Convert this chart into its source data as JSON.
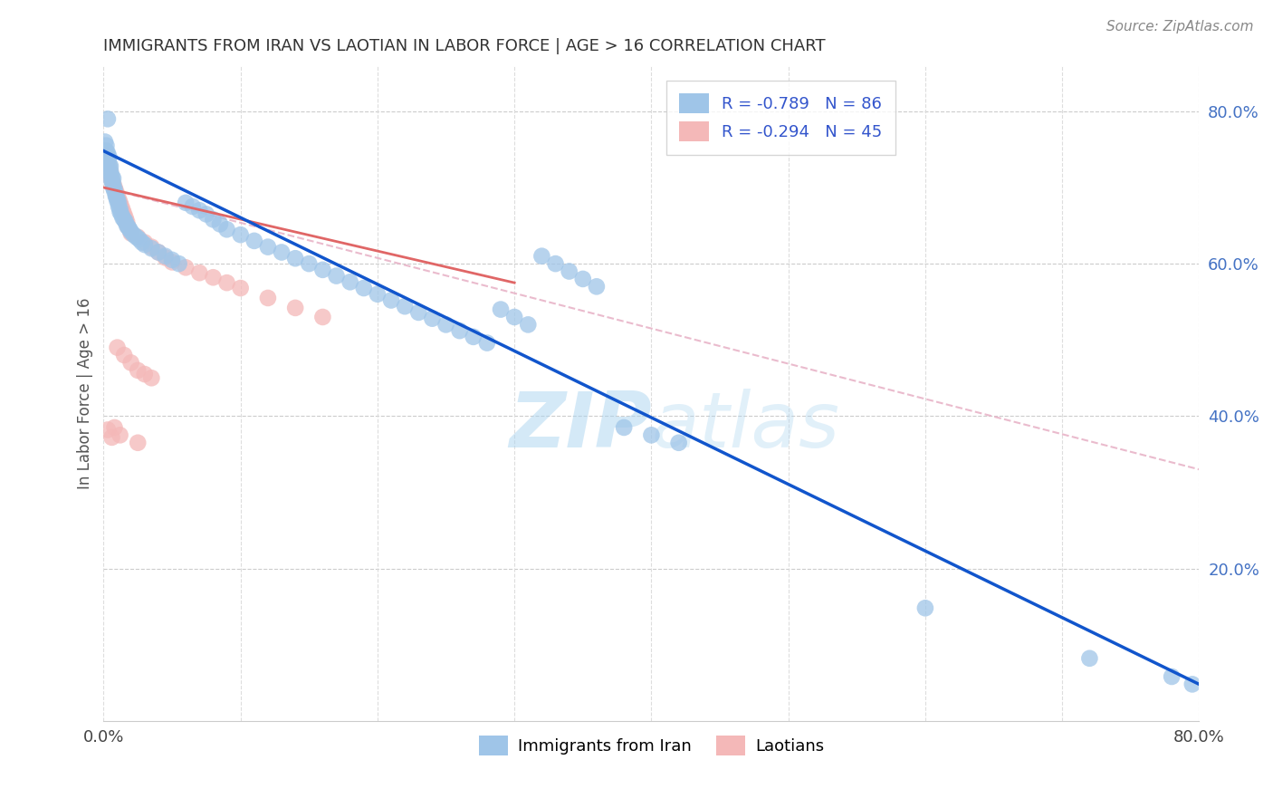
{
  "title": "IMMIGRANTS FROM IRAN VS LAOTIAN IN LABOR FORCE | AGE > 16 CORRELATION CHART",
  "source": "Source: ZipAtlas.com",
  "ylabel": "In Labor Force | Age > 16",
  "xlim": [
    0.0,
    0.8
  ],
  "ylim": [
    0.0,
    0.86
  ],
  "xtick_positions": [
    0.0,
    0.1,
    0.2,
    0.3,
    0.4,
    0.5,
    0.6,
    0.7,
    0.8
  ],
  "xtick_labels": [
    "0.0%",
    "",
    "",
    "",
    "",
    "",
    "",
    "",
    "80.0%"
  ],
  "yticks_right": [
    0.2,
    0.4,
    0.6,
    0.8
  ],
  "ytick_labels_right": [
    "20.0%",
    "40.0%",
    "60.0%",
    "80.0%"
  ],
  "iran_color": "#9fc5e8",
  "laotian_color": "#f4b8b8",
  "iran_R": -0.789,
  "iran_N": 86,
  "laotian_R": -0.294,
  "laotian_N": 45,
  "iran_line_color": "#1155cc",
  "laotian_line_color": "#e06666",
  "ref_line_color": "#e8b4c8",
  "watermark_zip": "ZIP",
  "watermark_atlas": "atlas",
  "legend_iran_label": "Immigrants from Iran",
  "legend_laotian_label": "Laotians",
  "iran_scatter": [
    [
      0.001,
      0.76
    ],
    [
      0.002,
      0.755
    ],
    [
      0.002,
      0.748
    ],
    [
      0.003,
      0.79
    ],
    [
      0.003,
      0.745
    ],
    [
      0.003,
      0.735
    ],
    [
      0.004,
      0.74
    ],
    [
      0.004,
      0.73
    ],
    [
      0.005,
      0.728
    ],
    [
      0.005,
      0.722
    ],
    [
      0.005,
      0.718
    ],
    [
      0.006,
      0.715
    ],
    [
      0.006,
      0.71
    ],
    [
      0.006,
      0.708
    ],
    [
      0.007,
      0.712
    ],
    [
      0.007,
      0.705
    ],
    [
      0.007,
      0.7
    ],
    [
      0.008,
      0.698
    ],
    [
      0.008,
      0.695
    ],
    [
      0.009,
      0.69
    ],
    [
      0.009,
      0.688
    ],
    [
      0.01,
      0.685
    ],
    [
      0.01,
      0.682
    ],
    [
      0.011,
      0.68
    ],
    [
      0.011,
      0.675
    ],
    [
      0.012,
      0.672
    ],
    [
      0.012,
      0.668
    ],
    [
      0.013,
      0.665
    ],
    [
      0.014,
      0.66
    ],
    [
      0.015,
      0.658
    ],
    [
      0.016,
      0.655
    ],
    [
      0.017,
      0.65
    ],
    [
      0.018,
      0.648
    ],
    [
      0.019,
      0.645
    ],
    [
      0.02,
      0.642
    ],
    [
      0.022,
      0.638
    ],
    [
      0.024,
      0.635
    ],
    [
      0.026,
      0.632
    ],
    [
      0.028,
      0.628
    ],
    [
      0.03,
      0.625
    ],
    [
      0.035,
      0.62
    ],
    [
      0.04,
      0.615
    ],
    [
      0.045,
      0.61
    ],
    [
      0.05,
      0.605
    ],
    [
      0.055,
      0.6
    ],
    [
      0.06,
      0.68
    ],
    [
      0.065,
      0.675
    ],
    [
      0.07,
      0.67
    ],
    [
      0.075,
      0.665
    ],
    [
      0.08,
      0.658
    ],
    [
      0.085,
      0.652
    ],
    [
      0.09,
      0.645
    ],
    [
      0.1,
      0.638
    ],
    [
      0.11,
      0.63
    ],
    [
      0.12,
      0.622
    ],
    [
      0.13,
      0.615
    ],
    [
      0.14,
      0.607
    ],
    [
      0.15,
      0.6
    ],
    [
      0.16,
      0.592
    ],
    [
      0.17,
      0.584
    ],
    [
      0.18,
      0.576
    ],
    [
      0.19,
      0.568
    ],
    [
      0.2,
      0.56
    ],
    [
      0.21,
      0.552
    ],
    [
      0.22,
      0.544
    ],
    [
      0.23,
      0.536
    ],
    [
      0.24,
      0.528
    ],
    [
      0.25,
      0.52
    ],
    [
      0.26,
      0.512
    ],
    [
      0.27,
      0.504
    ],
    [
      0.28,
      0.496
    ],
    [
      0.29,
      0.54
    ],
    [
      0.3,
      0.53
    ],
    [
      0.31,
      0.52
    ],
    [
      0.32,
      0.61
    ],
    [
      0.33,
      0.6
    ],
    [
      0.34,
      0.59
    ],
    [
      0.35,
      0.58
    ],
    [
      0.36,
      0.57
    ],
    [
      0.38,
      0.385
    ],
    [
      0.4,
      0.375
    ],
    [
      0.42,
      0.365
    ],
    [
      0.6,
      0.148
    ],
    [
      0.72,
      0.082
    ],
    [
      0.78,
      0.058
    ],
    [
      0.795,
      0.048
    ]
  ],
  "laotian_scatter": [
    [
      0.001,
      0.748
    ],
    [
      0.002,
      0.742
    ],
    [
      0.003,
      0.736
    ],
    [
      0.004,
      0.728
    ],
    [
      0.005,
      0.72
    ],
    [
      0.005,
      0.715
    ],
    [
      0.006,
      0.71
    ],
    [
      0.007,
      0.705
    ],
    [
      0.008,
      0.7
    ],
    [
      0.009,
      0.695
    ],
    [
      0.01,
      0.69
    ],
    [
      0.011,
      0.685
    ],
    [
      0.012,
      0.68
    ],
    [
      0.013,
      0.675
    ],
    [
      0.014,
      0.67
    ],
    [
      0.015,
      0.665
    ],
    [
      0.016,
      0.66
    ],
    [
      0.017,
      0.655
    ],
    [
      0.018,
      0.648
    ],
    [
      0.02,
      0.64
    ],
    [
      0.025,
      0.635
    ],
    [
      0.03,
      0.628
    ],
    [
      0.035,
      0.622
    ],
    [
      0.04,
      0.615
    ],
    [
      0.045,
      0.608
    ],
    [
      0.05,
      0.602
    ],
    [
      0.06,
      0.595
    ],
    [
      0.07,
      0.588
    ],
    [
      0.08,
      0.582
    ],
    [
      0.09,
      0.575
    ],
    [
      0.1,
      0.568
    ],
    [
      0.12,
      0.555
    ],
    [
      0.14,
      0.542
    ],
    [
      0.16,
      0.53
    ],
    [
      0.01,
      0.49
    ],
    [
      0.015,
      0.48
    ],
    [
      0.02,
      0.47
    ],
    [
      0.025,
      0.46
    ],
    [
      0.03,
      0.455
    ],
    [
      0.035,
      0.45
    ],
    [
      0.008,
      0.385
    ],
    [
      0.012,
      0.375
    ],
    [
      0.025,
      0.365
    ],
    [
      0.003,
      0.382
    ],
    [
      0.006,
      0.372
    ]
  ],
  "iran_line_x": [
    0.0,
    0.8
  ],
  "iran_line_y": [
    0.748,
    0.048
  ],
  "laotian_line_x": [
    0.0,
    0.3
  ],
  "laotian_line_y": [
    0.7,
    0.575
  ],
  "ref_line_x": [
    0.0,
    0.8
  ],
  "ref_line_y": [
    0.7,
    0.33
  ]
}
